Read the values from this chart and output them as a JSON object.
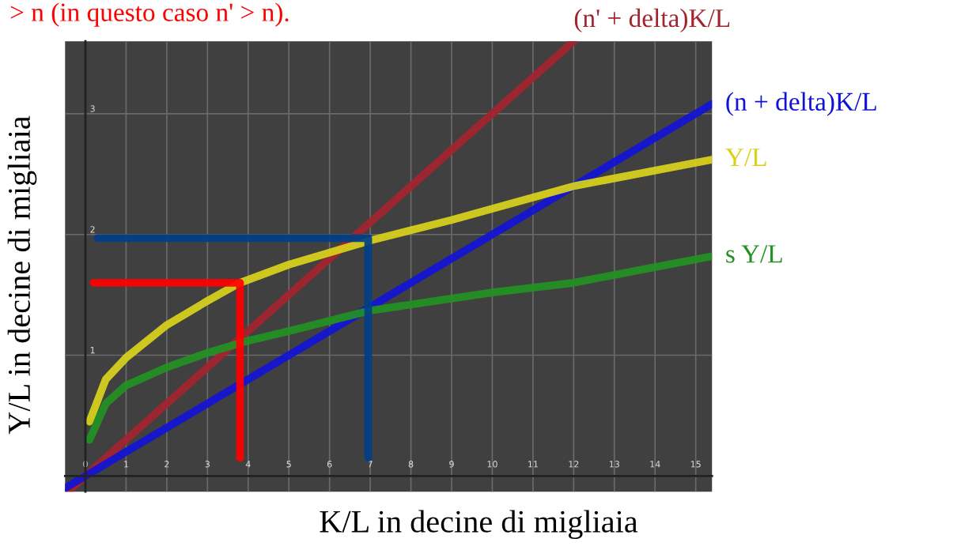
{
  "chart_data": {
    "type": "line",
    "xlabel": "K/L in decine di migliaia",
    "ylabel": "Y/L in decine di migliaia",
    "annotations": [
      "> n (in questo caso n' > n)."
    ],
    "xlim": [
      -0.5,
      15.4
    ],
    "ylim": [
      -0.13,
      3.6
    ],
    "xticks": [
      0,
      1,
      2,
      3,
      4,
      5,
      6,
      7,
      8,
      9,
      10,
      11,
      12,
      13,
      14,
      15
    ],
    "yticks": [
      0,
      1,
      2,
      3
    ],
    "grid": true,
    "legend": false,
    "series": [
      {
        "name": "(n' + delta)K/L",
        "color": "#a3242f",
        "x": [
          -0.43,
          0,
          12.0
        ],
        "values": [
          -0.13,
          0,
          3.6
        ]
      },
      {
        "name": "(n + delta)K/L",
        "color": "#1212d6",
        "x": [
          -0.5,
          0,
          15.4
        ],
        "values": [
          -0.1,
          0,
          3.08
        ]
      },
      {
        "name": "Y/L",
        "color": "#d9d21c",
        "x": [
          0.1,
          0.5,
          1,
          2,
          3,
          3.8,
          5,
          7,
          9,
          12,
          15.4
        ],
        "values": [
          0.45,
          0.8,
          0.98,
          1.25,
          1.45,
          1.6,
          1.75,
          1.95,
          2.12,
          2.4,
          2.62
        ]
      },
      {
        "name": "s Y/L",
        "color": "#239123",
        "x": [
          0.1,
          0.5,
          1,
          2,
          3,
          4,
          5,
          7,
          10,
          12,
          15.4
        ],
        "values": [
          0.3,
          0.6,
          0.75,
          0.9,
          1.02,
          1.12,
          1.2,
          1.37,
          1.52,
          1.6,
          1.82
        ]
      },
      {
        "color": "#ff0000",
        "x": [
          0.2,
          3.8,
          3.8
        ],
        "values": [
          1.6,
          1.6,
          0.15
        ]
      },
      {
        "color": "#003f87",
        "x": [
          0.3,
          6.95,
          6.95
        ],
        "values": [
          1.97,
          1.97,
          0.15
        ]
      }
    ]
  }
}
